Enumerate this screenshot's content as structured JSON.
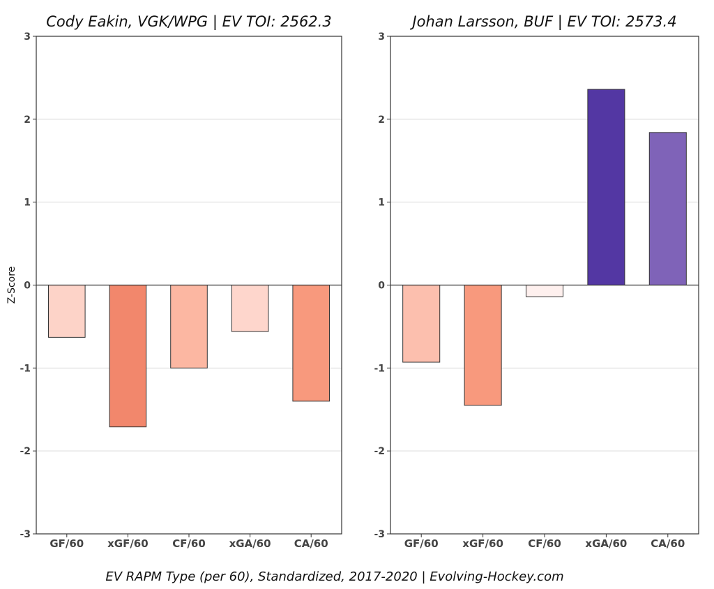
{
  "chart_data": [
    {
      "type": "bar",
      "title": "Cody Eakin, VGK/WPG  |  EV TOI: 2562.3",
      "ylabel": "Z-Score",
      "categories": [
        "GF/60",
        "xGF/60",
        "CF/60",
        "xGA/60",
        "CA/60"
      ],
      "values": [
        -0.63,
        -1.71,
        -1.0,
        -0.56,
        -1.4
      ],
      "colors": [
        "#fdd3c8",
        "#f2876c",
        "#fcb7a2",
        "#fed6cc",
        "#f8997d"
      ],
      "ylim": [
        -3,
        3
      ],
      "yticks": [
        "3",
        "2",
        "1",
        "0",
        "-1",
        "-2",
        "-3"
      ],
      "grid": true
    },
    {
      "type": "bar",
      "title": "Johan Larsson, BUF  |  EV TOI: 2573.4",
      "ylabel": "",
      "categories": [
        "GF/60",
        "xGF/60",
        "CF/60",
        "xGA/60",
        "CA/60"
      ],
      "values": [
        -0.93,
        -1.45,
        -0.14,
        2.36,
        1.84
      ],
      "colors": [
        "#fcbfae",
        "#f8997d",
        "#fef0ee",
        "#5337a3",
        "#7f63b8"
      ],
      "ylim": [
        -3,
        3
      ],
      "yticks": [
        "3",
        "2",
        "1",
        "0",
        "-1",
        "-2",
        "-3"
      ],
      "grid": true
    }
  ],
  "caption": "EV RAPM Type (per 60), Standardized, 2017-2020    |    Evolving-Hockey.com"
}
